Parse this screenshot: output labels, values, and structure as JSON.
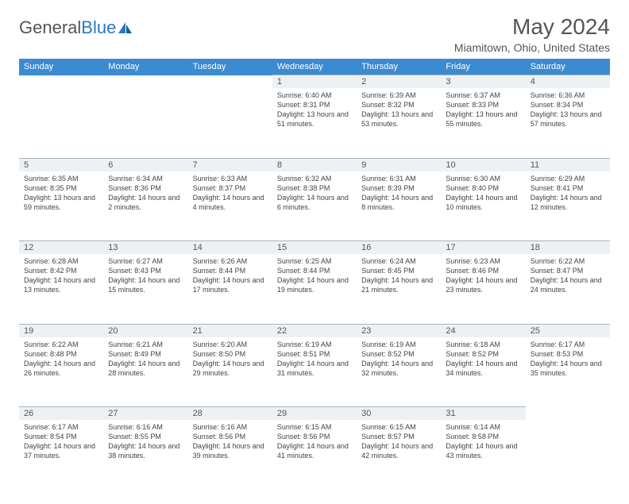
{
  "logo": {
    "text1": "General",
    "text2": "Blue"
  },
  "title": "May 2024",
  "location": "Miamitown, Ohio, United States",
  "colors": {
    "header_bg": "#3b8bd0",
    "header_fg": "#ffffff",
    "daynum_bg": "#eef1f4",
    "border": "#a8b4c0",
    "text": "#555555",
    "logo_blue": "#2b78c2"
  },
  "dayNames": [
    "Sunday",
    "Monday",
    "Tuesday",
    "Wednesday",
    "Thursday",
    "Friday",
    "Saturday"
  ],
  "weeks": [
    [
      {
        "n": "",
        "lines": []
      },
      {
        "n": "",
        "lines": []
      },
      {
        "n": "",
        "lines": []
      },
      {
        "n": "1",
        "lines": [
          "Sunrise: 6:40 AM",
          "Sunset: 8:31 PM",
          "Daylight: 13 hours and 51 minutes."
        ]
      },
      {
        "n": "2",
        "lines": [
          "Sunrise: 6:39 AM",
          "Sunset: 8:32 PM",
          "Daylight: 13 hours and 53 minutes."
        ]
      },
      {
        "n": "3",
        "lines": [
          "Sunrise: 6:37 AM",
          "Sunset: 8:33 PM",
          "Daylight: 13 hours and 55 minutes."
        ]
      },
      {
        "n": "4",
        "lines": [
          "Sunrise: 6:36 AM",
          "Sunset: 8:34 PM",
          "Daylight: 13 hours and 57 minutes."
        ]
      }
    ],
    [
      {
        "n": "5",
        "lines": [
          "Sunrise: 6:35 AM",
          "Sunset: 8:35 PM",
          "Daylight: 13 hours and 59 minutes."
        ]
      },
      {
        "n": "6",
        "lines": [
          "Sunrise: 6:34 AM",
          "Sunset: 8:36 PM",
          "Daylight: 14 hours and 2 minutes."
        ]
      },
      {
        "n": "7",
        "lines": [
          "Sunrise: 6:33 AM",
          "Sunset: 8:37 PM",
          "Daylight: 14 hours and 4 minutes."
        ]
      },
      {
        "n": "8",
        "lines": [
          "Sunrise: 6:32 AM",
          "Sunset: 8:38 PM",
          "Daylight: 14 hours and 6 minutes."
        ]
      },
      {
        "n": "9",
        "lines": [
          "Sunrise: 6:31 AM",
          "Sunset: 8:39 PM",
          "Daylight: 14 hours and 8 minutes."
        ]
      },
      {
        "n": "10",
        "lines": [
          "Sunrise: 6:30 AM",
          "Sunset: 8:40 PM",
          "Daylight: 14 hours and 10 minutes."
        ]
      },
      {
        "n": "11",
        "lines": [
          "Sunrise: 6:29 AM",
          "Sunset: 8:41 PM",
          "Daylight: 14 hours and 12 minutes."
        ]
      }
    ],
    [
      {
        "n": "12",
        "lines": [
          "Sunrise: 6:28 AM",
          "Sunset: 8:42 PM",
          "Daylight: 14 hours and 13 minutes."
        ]
      },
      {
        "n": "13",
        "lines": [
          "Sunrise: 6:27 AM",
          "Sunset: 8:43 PM",
          "Daylight: 14 hours and 15 minutes."
        ]
      },
      {
        "n": "14",
        "lines": [
          "Sunrise: 6:26 AM",
          "Sunset: 8:44 PM",
          "Daylight: 14 hours and 17 minutes."
        ]
      },
      {
        "n": "15",
        "lines": [
          "Sunrise: 6:25 AM",
          "Sunset: 8:44 PM",
          "Daylight: 14 hours and 19 minutes."
        ]
      },
      {
        "n": "16",
        "lines": [
          "Sunrise: 6:24 AM",
          "Sunset: 8:45 PM",
          "Daylight: 14 hours and 21 minutes."
        ]
      },
      {
        "n": "17",
        "lines": [
          "Sunrise: 6:23 AM",
          "Sunset: 8:46 PM",
          "Daylight: 14 hours and 23 minutes."
        ]
      },
      {
        "n": "18",
        "lines": [
          "Sunrise: 6:22 AM",
          "Sunset: 8:47 PM",
          "Daylight: 14 hours and 24 minutes."
        ]
      }
    ],
    [
      {
        "n": "19",
        "lines": [
          "Sunrise: 6:22 AM",
          "Sunset: 8:48 PM",
          "Daylight: 14 hours and 26 minutes."
        ]
      },
      {
        "n": "20",
        "lines": [
          "Sunrise: 6:21 AM",
          "Sunset: 8:49 PM",
          "Daylight: 14 hours and 28 minutes."
        ]
      },
      {
        "n": "21",
        "lines": [
          "Sunrise: 6:20 AM",
          "Sunset: 8:50 PM",
          "Daylight: 14 hours and 29 minutes."
        ]
      },
      {
        "n": "22",
        "lines": [
          "Sunrise: 6:19 AM",
          "Sunset: 8:51 PM",
          "Daylight: 14 hours and 31 minutes."
        ]
      },
      {
        "n": "23",
        "lines": [
          "Sunrise: 6:19 AM",
          "Sunset: 8:52 PM",
          "Daylight: 14 hours and 32 minutes."
        ]
      },
      {
        "n": "24",
        "lines": [
          "Sunrise: 6:18 AM",
          "Sunset: 8:52 PM",
          "Daylight: 14 hours and 34 minutes."
        ]
      },
      {
        "n": "25",
        "lines": [
          "Sunrise: 6:17 AM",
          "Sunset: 8:53 PM",
          "Daylight: 14 hours and 35 minutes."
        ]
      }
    ],
    [
      {
        "n": "26",
        "lines": [
          "Sunrise: 6:17 AM",
          "Sunset: 8:54 PM",
          "Daylight: 14 hours and 37 minutes."
        ]
      },
      {
        "n": "27",
        "lines": [
          "Sunrise: 6:16 AM",
          "Sunset: 8:55 PM",
          "Daylight: 14 hours and 38 minutes."
        ]
      },
      {
        "n": "28",
        "lines": [
          "Sunrise: 6:16 AM",
          "Sunset: 8:56 PM",
          "Daylight: 14 hours and 39 minutes."
        ]
      },
      {
        "n": "29",
        "lines": [
          "Sunrise: 6:15 AM",
          "Sunset: 8:56 PM",
          "Daylight: 14 hours and 41 minutes."
        ]
      },
      {
        "n": "30",
        "lines": [
          "Sunrise: 6:15 AM",
          "Sunset: 8:57 PM",
          "Daylight: 14 hours and 42 minutes."
        ]
      },
      {
        "n": "31",
        "lines": [
          "Sunrise: 6:14 AM",
          "Sunset: 8:58 PM",
          "Daylight: 14 hours and 43 minutes."
        ]
      },
      {
        "n": "",
        "lines": []
      }
    ]
  ]
}
